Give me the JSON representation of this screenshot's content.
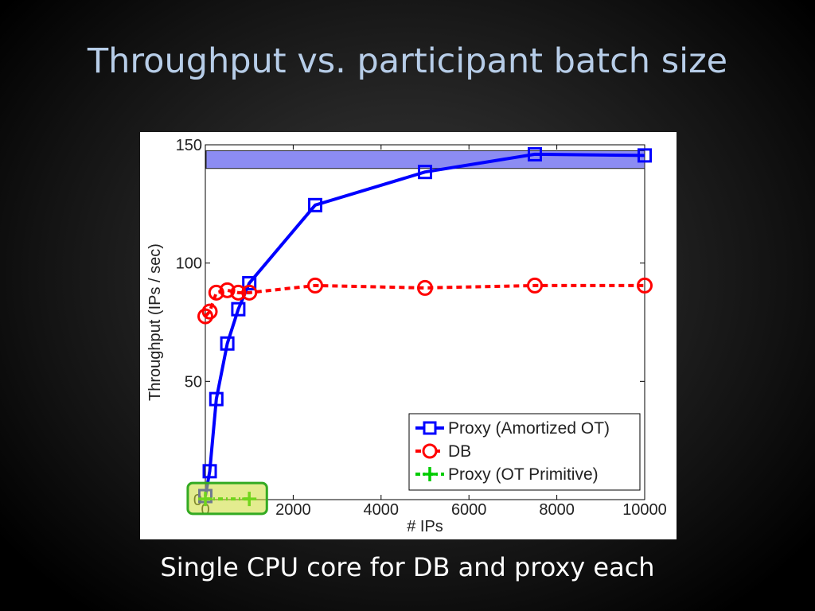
{
  "slide": {
    "title": "Throughput vs. participant batch size",
    "caption": "Single CPU core for DB and proxy each"
  },
  "chart_data": {
    "type": "line",
    "title": "",
    "xlabel": "# IPs",
    "ylabel": "Throughput (IPs / sec)",
    "xlim": [
      0,
      10000
    ],
    "ylim": [
      0,
      150
    ],
    "xticks": [
      0,
      2000,
      4000,
      6000,
      8000,
      10000
    ],
    "yticks": [
      0,
      50,
      100,
      150
    ],
    "grid": false,
    "legend_position": "bottom-right",
    "series": [
      {
        "name": "Proxy (Amortized OT)",
        "color": "#0000ff",
        "marker": "square",
        "line_style": "solid",
        "x": [
          0,
          100,
          250,
          500,
          750,
          1000,
          2500,
          5000,
          7500,
          10000
        ],
        "y": [
          1.5,
          12,
          42.5,
          66,
          80.5,
          91.5,
          124.5,
          138.5,
          146,
          145.5
        ]
      },
      {
        "name": "DB",
        "color": "#ff0000",
        "marker": "circle",
        "line_style": "dashed",
        "x": [
          0,
          100,
          250,
          500,
          750,
          1000,
          2500,
          5000,
          7500,
          10000
        ],
        "y": [
          77.5,
          79.5,
          87.5,
          88.5,
          87.5,
          87.5,
          90.5,
          89.5,
          90.5,
          90.5
        ]
      },
      {
        "name": "Proxy (OT Primitive)",
        "color": "#00cc00",
        "marker": "plus",
        "line_style": "dash-dot",
        "x": [
          0,
          1000
        ],
        "y": [
          0.3,
          0.3
        ]
      }
    ],
    "highlights": [
      {
        "name": "top-band",
        "x_range": [
          0,
          10000
        ],
        "y_range": [
          140,
          147.5
        ],
        "color": "#6666ee"
      },
      {
        "name": "ot-primitive-box",
        "x_range": [
          -400,
          1400
        ],
        "y_range": [
          -6,
          7
        ],
        "color": "#ccdd33"
      }
    ]
  }
}
